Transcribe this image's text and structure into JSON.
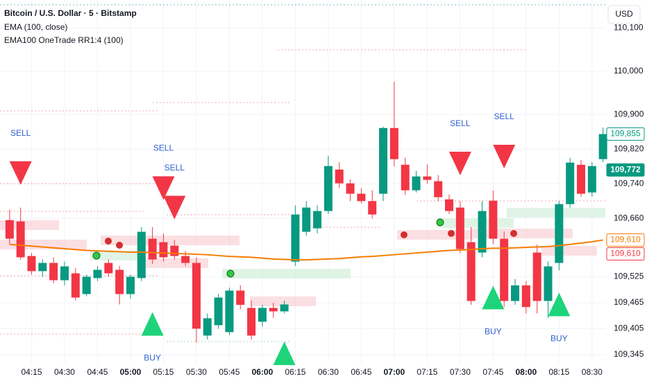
{
  "chart_data": {
    "type": "candlestick",
    "title": "Bitcoin / U.S. Dollar · 5 · Bitstamp",
    "strategy": "EMA100 OneTrade RR1:4 (100)",
    "currency": "USD",
    "up_color": "#089981",
    "down_color": "#f23645",
    "categories": [
      null,
      null,
      "04:15",
      null,
      null,
      "04:30",
      null,
      null,
      "04:45",
      null,
      null,
      "05:00",
      null,
      null,
      "05:15",
      null,
      null,
      "05:30",
      null,
      null,
      "05:45",
      null,
      null,
      "06:00",
      null,
      null,
      "06:15",
      null,
      null,
      "06:30",
      null,
      null,
      "06:45",
      null,
      null,
      "07:00",
      null,
      null,
      "07:15",
      null,
      null,
      "07:30",
      null,
      null,
      "07:45",
      null,
      null,
      "08:00",
      null,
      null,
      "08:15",
      null,
      null,
      "08:30",
      null
    ],
    "open": [
      109656,
      109653,
      109573,
      109538,
      109557,
      109517,
      109533,
      109485,
      109522,
      109557,
      109541,
      109485,
      109522,
      109613,
      109605,
      109597,
      109573,
      109557,
      109389,
      109413,
      109397,
      109493,
      109453,
      109421,
      109453,
      109445,
      109560,
      109629,
      109637,
      109677,
      109773,
      109741,
      109717,
      109700,
      109717,
      109869,
      109784,
      109725,
      109757,
      109746,
      109704,
      109685,
      109605,
      109581,
      109701,
      109613,
      109469,
      109505,
      109581,
      109469,
      109557,
      109693,
      109784,
      109720,
      109797
    ],
    "high": [
      109680,
      109685,
      109580,
      109565,
      109570,
      109560,
      109545,
      109530,
      109550,
      109565,
      109550,
      109530,
      109640,
      109640,
      109625,
      109610,
      109585,
      109570,
      109440,
      109485,
      109500,
      109505,
      109470,
      109460,
      109465,
      109470,
      109690,
      109700,
      109690,
      109805,
      109790,
      109750,
      109730,
      109725,
      109872,
      109976,
      109800,
      109770,
      109785,
      109760,
      109715,
      109700,
      109640,
      109700,
      109725,
      109630,
      109520,
      109515,
      109600,
      109560,
      109700,
      109800,
      109795,
      109790,
      109870
    ],
    "low": [
      109600,
      109565,
      109530,
      109525,
      109510,
      109505,
      109470,
      109480,
      109515,
      109525,
      109461,
      109475,
      109515,
      109555,
      109560,
      109565,
      109550,
      109373,
      109380,
      109405,
      109390,
      109450,
      109380,
      109410,
      109430,
      109440,
      109550,
      109620,
      109625,
      109670,
      109730,
      109700,
      109695,
      109660,
      109700,
      109780,
      109715,
      109720,
      109740,
      109700,
      109670,
      109580,
      109460,
      109570,
      109600,
      109455,
      109460,
      109440,
      109440,
      109430,
      109540,
      109685,
      109710,
      109710,
      109790
    ],
    "close": [
      109613,
      109570,
      109538,
      109557,
      109517,
      109549,
      109477,
      109525,
      109541,
      109533,
      109485,
      109525,
      109629,
      109565,
      109570,
      109573,
      109557,
      109405,
      109429,
      109477,
      109493,
      109460,
      109389,
      109453,
      109445,
      109461,
      109669,
      109685,
      109677,
      109781,
      109741,
      109717,
      109700,
      109669,
      109869,
      109797,
      109725,
      109757,
      109749,
      109709,
      109677,
      109589,
      109469,
      109677,
      109613,
      109469,
      109505,
      109455,
      109469,
      109549,
      109693,
      109789,
      109717,
      109781,
      109855
    ],
    "series": [
      {
        "name": "EMA (100, close)",
        "color": "#f57c00",
        "values": [
          109600,
          109598,
          109596,
          109594,
          109592,
          109590,
          109588,
          109586,
          109585,
          109584,
          109583,
          109582,
          109582,
          109581,
          109580,
          109579,
          109578,
          109577,
          109576,
          109574,
          109572,
          109571,
          109570,
          109568,
          109566,
          109565,
          109564,
          109564,
          109565,
          109566,
          109567,
          109569,
          109571,
          109572,
          109574,
          109576,
          109578,
          109580,
          109582,
          109584,
          109586,
          109587,
          109588,
          109590,
          109591,
          109591,
          109592,
          109593,
          109594,
          109595,
          109597,
          109600,
          109603,
          109606,
          109610
        ]
      }
    ],
    "signals": [
      {
        "label": "SELL",
        "index": 1,
        "value": 109765
      },
      {
        "label": "SELL",
        "index": 14,
        "value": 109730
      },
      {
        "label": "SELL",
        "index": 15,
        "value": 109685
      },
      {
        "label": "SELL",
        "index": 41,
        "value": 109787
      },
      {
        "label": "SELL",
        "index": 45,
        "value": 109803
      },
      {
        "label": "BUY",
        "index": 13,
        "value": 109416
      },
      {
        "label": "BUY",
        "index": 25,
        "value": 109348
      },
      {
        "label": "BUY",
        "index": 44,
        "value": 109477
      },
      {
        "label": "BUY",
        "index": 50,
        "value": 109461
      }
    ],
    "price_labels": [
      {
        "value": 109855,
        "label": "109,855",
        "color": "#089981",
        "filled": false
      },
      {
        "value": 109772,
        "label": "109,772",
        "color": "#089981",
        "filled": true
      },
      {
        "value": 109610,
        "label": "109,610",
        "color": "#f57c00",
        "filled": false
      },
      {
        "value": 109610,
        "label": "109,610",
        "color": "#f23645",
        "filled": false
      }
    ],
    "ylim": [
      109324,
      110165
    ],
    "yticks": [
      {
        "value": 110100,
        "label": "110,100"
      },
      {
        "value": 110000,
        "label": "110,000"
      },
      {
        "value": 109900,
        "label": "109,900"
      },
      {
        "value": 109820,
        "label": "109,820"
      },
      {
        "value": 109740,
        "label": "109,740"
      },
      {
        "value": 109660,
        "label": "109,660"
      },
      {
        "value": 109525,
        "label": "109,525"
      },
      {
        "value": 109465,
        "label": "109,465"
      },
      {
        "value": 109405,
        "label": "109,405"
      },
      {
        "value": 109345,
        "label": "109,345"
      }
    ],
    "grid": true
  }
}
